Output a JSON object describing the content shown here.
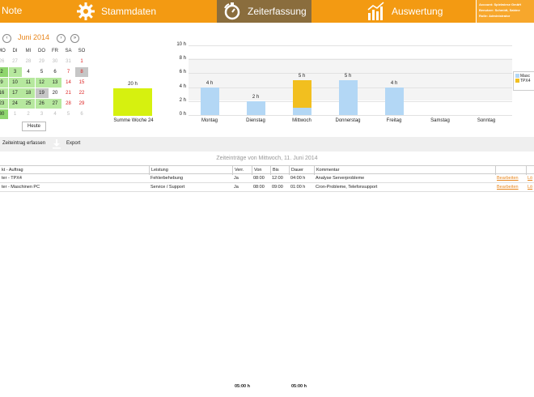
{
  "header": {
    "left_label": "Note",
    "tabs": [
      {
        "label": "Stammdaten",
        "icon": "gear-icon"
      },
      {
        "label": "Zeiterfassung",
        "icon": "stopwatch-icon"
      },
      {
        "label": "Auswertung",
        "icon": "chart-icon"
      }
    ],
    "account": {
      "line1_key": "Account:",
      "line1_val": "Spielwiese GmbH",
      "line2_key": "Benutzer:",
      "line2_val": "Schmidt, Sabine",
      "line3_key": "Rolle:",
      "line3_val": "Administrator"
    }
  },
  "calendar": {
    "prev": "‹",
    "next": "›",
    "title": "Juni 2014",
    "weekdays": [
      "MO",
      "DI",
      "MI",
      "DO",
      "FR",
      "SA",
      "SO"
    ],
    "weeks": [
      [
        {
          "d": "26",
          "s": "mute"
        },
        {
          "d": "27",
          "s": "mute"
        },
        {
          "d": "28",
          "s": "mute"
        },
        {
          "d": "29",
          "s": "mute"
        },
        {
          "d": "30",
          "s": "mute"
        },
        {
          "d": "31",
          "s": "mute"
        },
        {
          "d": "1",
          "s": "red"
        }
      ],
      [
        {
          "d": "2",
          "s": "greendark"
        },
        {
          "d": "3",
          "s": "green"
        },
        {
          "d": "4",
          "s": ""
        },
        {
          "d": "5",
          "s": ""
        },
        {
          "d": "6",
          "s": ""
        },
        {
          "d": "7",
          "s": "red"
        },
        {
          "d": "8",
          "s": "grey red"
        }
      ],
      [
        {
          "d": "9",
          "s": "green"
        },
        {
          "d": "10",
          "s": "green"
        },
        {
          "d": "11",
          "s": "green"
        },
        {
          "d": "12",
          "s": "green"
        },
        {
          "d": "13",
          "s": "green"
        },
        {
          "d": "14",
          "s": "red"
        },
        {
          "d": "15",
          "s": "red"
        }
      ],
      [
        {
          "d": "16",
          "s": "green"
        },
        {
          "d": "17",
          "s": "green"
        },
        {
          "d": "18",
          "s": "green"
        },
        {
          "d": "19",
          "s": "grey"
        },
        {
          "d": "20",
          "s": ""
        },
        {
          "d": "21",
          "s": "red"
        },
        {
          "d": "22",
          "s": "red"
        }
      ],
      [
        {
          "d": "23",
          "s": "green"
        },
        {
          "d": "24",
          "s": "green"
        },
        {
          "d": "25",
          "s": "green"
        },
        {
          "d": "26",
          "s": "green"
        },
        {
          "d": "27",
          "s": "green"
        },
        {
          "d": "28",
          "s": "red"
        },
        {
          "d": "29",
          "s": "red"
        }
      ],
      [
        {
          "d": "30",
          "s": "greendark"
        },
        {
          "d": "1",
          "s": "mute"
        },
        {
          "d": "2",
          "s": "mute"
        },
        {
          "d": "3",
          "s": "mute"
        },
        {
          "d": "4",
          "s": "mute"
        },
        {
          "d": "5",
          "s": "mute"
        },
        {
          "d": "6",
          "s": "mute"
        }
      ]
    ],
    "today_label": "Heute"
  },
  "summary": {
    "value_label": "20 h",
    "label": "Summe Woche 24"
  },
  "chart_data": {
    "type": "bar",
    "categories": [
      "Montag",
      "Dienstag",
      "Mittwoch",
      "Donnerstag",
      "Freitag",
      "Samstag",
      "Sonntag"
    ],
    "series": [
      {
        "name": "Maschi...",
        "color": "#b3d7f5",
        "values": [
          4,
          2,
          1,
          5,
          4,
          0,
          0
        ]
      },
      {
        "name": "TPX4",
        "color": "#f2bf1f",
        "values": [
          0,
          0,
          4,
          0,
          0,
          0,
          0
        ]
      }
    ],
    "totals_labels": [
      "4 h",
      "2 h",
      "5 h",
      "5 h",
      "4 h",
      "",
      ""
    ],
    "y_ticks": [
      "10 h",
      "8 h",
      "6 h",
      "4 h",
      "2 h",
      "0 h"
    ],
    "ylim": [
      0,
      10
    ],
    "stacked": true
  },
  "legend": {
    "items": [
      {
        "label": "Masc",
        "color": "#b3d7f5"
      },
      {
        "label": "TPX4",
        "color": "#f2bf1f"
      }
    ]
  },
  "toolbar": {
    "add_label": "Zeiteintrag erfassen",
    "export_label": "Export"
  },
  "section_title": "Zeiteinträge von Mittwoch, 11. Juni 2014",
  "table": {
    "headers": [
      "kt - Auftrag",
      "Leistung",
      "Verr.",
      "Von",
      "Bis",
      "Dauer",
      "Kommentar",
      "",
      ""
    ],
    "rows": [
      [
        "ter - TPX4",
        "Fehlerbehebung",
        "Ja",
        "08:00",
        "12:00",
        "04:00 h",
        "Analyse Serverprobleme",
        "Bearbeiten",
        "Lö"
      ],
      [
        "ter - Maschinen PC",
        "Service / Support",
        "Ja",
        "08:00",
        "09:00",
        "01:00 h",
        "Cron-Probleme, Telefonsupport",
        "Bearbeiten",
        "Lö"
      ]
    ],
    "totals": {
      "von": "05:00 h",
      "dauer": "05:00 h"
    }
  }
}
